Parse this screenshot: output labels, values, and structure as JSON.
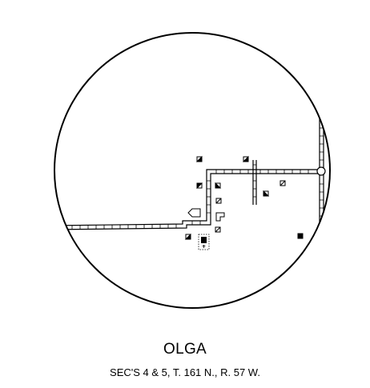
{
  "map": {
    "title": "OLGA",
    "location": "SEC'S  4 & 5, T. 161 N., R. 57 W.",
    "colors": {
      "ink": "#000000",
      "paper": "#ffffff"
    }
  }
}
